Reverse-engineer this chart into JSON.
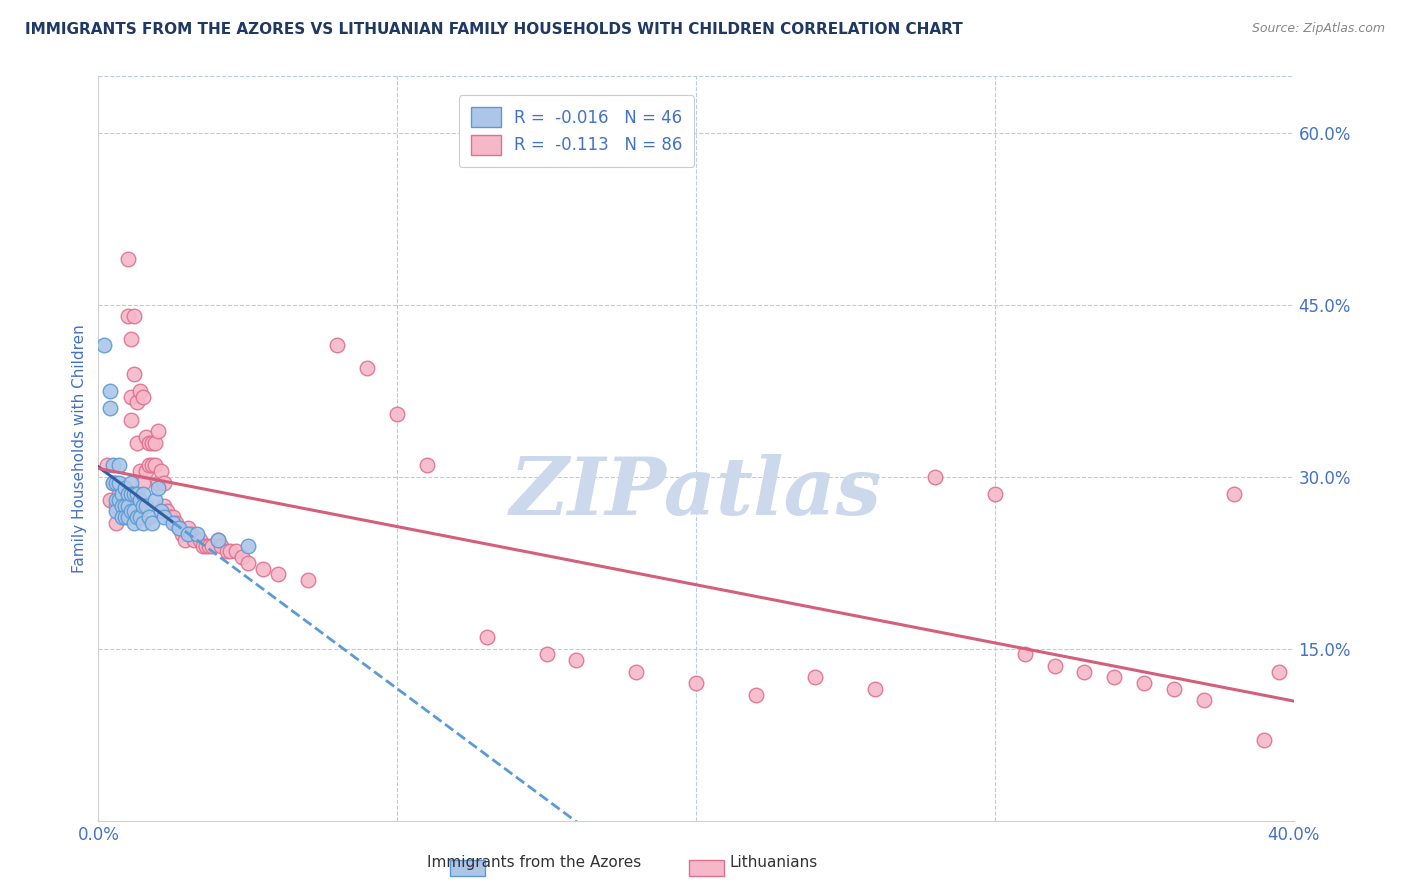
{
  "title": "IMMIGRANTS FROM THE AZORES VS LITHUANIAN FAMILY HOUSEHOLDS WITH CHILDREN CORRELATION CHART",
  "source": "Source: ZipAtlas.com",
  "ylabel": "Family Households with Children",
  "xlim": [
    0.0,
    0.4
  ],
  "ylim": [
    0.0,
    0.65
  ],
  "x_ticks": [
    0.0,
    0.1,
    0.2,
    0.3,
    0.4
  ],
  "x_tick_labels": [
    "0.0%",
    "",
    "",
    "",
    "40.0%"
  ],
  "y_ticks_right": [
    0.15,
    0.3,
    0.45,
    0.6
  ],
  "y_tick_labels_right": [
    "15.0%",
    "30.0%",
    "45.0%",
    "60.0%"
  ],
  "series1_label": "Immigrants from the Azores",
  "series1_R": "-0.016",
  "series1_N": "46",
  "series1_color": "#adc6e8",
  "series1_edge_color": "#5b9bd5",
  "series2_label": "Lithuanians",
  "series2_R": "-0.113",
  "series2_N": "86",
  "series2_color": "#f4b8c8",
  "series2_edge_color": "#e07090",
  "trend1_solid_color": "#2e5fa3",
  "trend1_dash_color": "#5b9bd5",
  "trend2_color": "#d45f7a",
  "watermark": "ZIPatlas",
  "watermark_color": "#ccd9ed",
  "background_color": "#ffffff",
  "title_color": "#1f3864",
  "axis_label_color": "#4472c4",
  "tick_color": "#4472c4",
  "grid_color": "#b8cce4",
  "series1_x": [
    0.002,
    0.004,
    0.004,
    0.005,
    0.005,
    0.006,
    0.006,
    0.006,
    0.007,
    0.007,
    0.007,
    0.008,
    0.008,
    0.008,
    0.009,
    0.009,
    0.009,
    0.01,
    0.01,
    0.01,
    0.011,
    0.011,
    0.011,
    0.012,
    0.012,
    0.012,
    0.013,
    0.013,
    0.014,
    0.014,
    0.015,
    0.015,
    0.015,
    0.016,
    0.017,
    0.018,
    0.019,
    0.02,
    0.021,
    0.022,
    0.025,
    0.027,
    0.03,
    0.033,
    0.04,
    0.05
  ],
  "series1_y": [
    0.415,
    0.375,
    0.36,
    0.31,
    0.295,
    0.295,
    0.28,
    0.27,
    0.31,
    0.295,
    0.28,
    0.285,
    0.275,
    0.265,
    0.29,
    0.275,
    0.265,
    0.285,
    0.275,
    0.265,
    0.295,
    0.285,
    0.27,
    0.285,
    0.27,
    0.26,
    0.285,
    0.265,
    0.28,
    0.265,
    0.285,
    0.275,
    0.26,
    0.275,
    0.265,
    0.26,
    0.28,
    0.29,
    0.27,
    0.265,
    0.26,
    0.255,
    0.25,
    0.25,
    0.245,
    0.24
  ],
  "series2_x": [
    0.003,
    0.004,
    0.005,
    0.006,
    0.006,
    0.007,
    0.008,
    0.008,
    0.009,
    0.009,
    0.01,
    0.01,
    0.011,
    0.011,
    0.011,
    0.012,
    0.012,
    0.013,
    0.013,
    0.014,
    0.014,
    0.015,
    0.015,
    0.015,
    0.016,
    0.016,
    0.017,
    0.017,
    0.018,
    0.018,
    0.019,
    0.019,
    0.02,
    0.02,
    0.021,
    0.022,
    0.022,
    0.023,
    0.024,
    0.025,
    0.026,
    0.027,
    0.028,
    0.029,
    0.03,
    0.031,
    0.032,
    0.034,
    0.035,
    0.036,
    0.037,
    0.038,
    0.04,
    0.041,
    0.043,
    0.044,
    0.046,
    0.048,
    0.05,
    0.055,
    0.06,
    0.07,
    0.08,
    0.09,
    0.1,
    0.11,
    0.13,
    0.15,
    0.16,
    0.18,
    0.2,
    0.22,
    0.24,
    0.26,
    0.28,
    0.3,
    0.31,
    0.32,
    0.33,
    0.34,
    0.35,
    0.36,
    0.37,
    0.38,
    0.39,
    0.395
  ],
  "series2_y": [
    0.31,
    0.28,
    0.295,
    0.275,
    0.26,
    0.285,
    0.29,
    0.275,
    0.29,
    0.27,
    0.49,
    0.44,
    0.42,
    0.37,
    0.35,
    0.44,
    0.39,
    0.365,
    0.33,
    0.375,
    0.305,
    0.37,
    0.295,
    0.275,
    0.335,
    0.305,
    0.33,
    0.31,
    0.33,
    0.31,
    0.33,
    0.31,
    0.34,
    0.295,
    0.305,
    0.295,
    0.275,
    0.27,
    0.265,
    0.265,
    0.26,
    0.255,
    0.25,
    0.245,
    0.255,
    0.25,
    0.245,
    0.245,
    0.24,
    0.24,
    0.24,
    0.24,
    0.245,
    0.24,
    0.235,
    0.235,
    0.235,
    0.23,
    0.225,
    0.22,
    0.215,
    0.21,
    0.415,
    0.395,
    0.355,
    0.31,
    0.16,
    0.145,
    0.14,
    0.13,
    0.12,
    0.11,
    0.125,
    0.115,
    0.3,
    0.285,
    0.145,
    0.135,
    0.13,
    0.125,
    0.12,
    0.115,
    0.105,
    0.285,
    0.07,
    0.13
  ]
}
